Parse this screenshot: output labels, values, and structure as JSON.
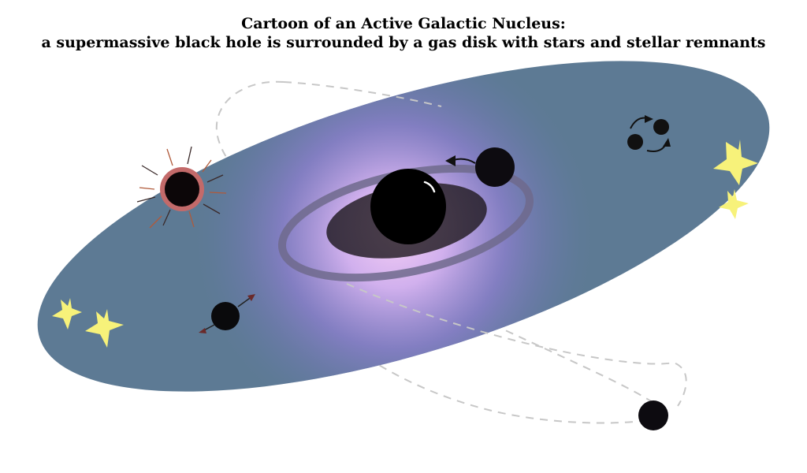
{
  "title": {
    "line1": "Cartoon of  an Active Galactic Nucleus:",
    "line2": "a supermassive black hole is surrounded by a gas disk with stars and stellar remnants"
  },
  "colors": {
    "disk": "#5d7a94",
    "glow_inner": "#f3ccf5",
    "glow_mid": "#8e7fd0",
    "ring": "#6f6a8c",
    "inner_disk": "#2f2730",
    "black_hole": "#000000",
    "star": "#f7f27a",
    "accreting_ring": "#c36a6a",
    "orbit": "#c7c7c7"
  },
  "icons": [
    "supermassive-black-hole-icon",
    "orbiting-compact-object-icon",
    "accreting-star-icon",
    "binary-remnant-icon",
    "star-icon",
    "migrating-remnant-icon",
    "inclined-orbit-remnant-icon"
  ]
}
